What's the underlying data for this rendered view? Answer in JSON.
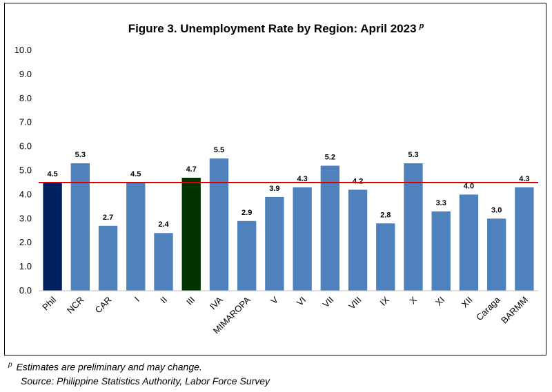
{
  "chart_data": {
    "type": "bar",
    "title": "Figure 3. Unemployment Rate by Region: April 2023",
    "title_superscript": "p",
    "categories": [
      "Phil",
      "NCR",
      "CAR",
      "I",
      "II",
      "III",
      "IVA",
      "MIMAROPA",
      "V",
      "VI",
      "VII",
      "VIII",
      "IX",
      "X",
      "XI",
      "XII",
      "Caraga",
      "BARMM"
    ],
    "values": [
      4.5,
      5.3,
      2.7,
      4.5,
      2.4,
      4.7,
      5.5,
      2.9,
      3.9,
      4.3,
      5.2,
      4.2,
      2.8,
      5.3,
      3.3,
      4.0,
      3.0,
      4.3
    ],
    "value_labels": [
      "4.5",
      "5.3",
      "2.7",
      "4.5",
      "2.4",
      "4.7",
      "5.5",
      "2.9",
      "3.9",
      "4.3",
      "5.2",
      "4.2",
      "2.8",
      "5.3",
      "3.3",
      "4.0",
      "3.0",
      "4.3"
    ],
    "bar_colors": [
      "#002060",
      "#4F81BD",
      "#4F81BD",
      "#4F81BD",
      "#4F81BD",
      "#003300",
      "#4F81BD",
      "#4F81BD",
      "#4F81BD",
      "#4F81BD",
      "#4F81BD",
      "#4F81BD",
      "#4F81BD",
      "#4F81BD",
      "#4F81BD",
      "#4F81BD",
      "#4F81BD",
      "#4F81BD"
    ],
    "ylim": [
      0,
      10
    ],
    "yticks": [
      "0.0",
      "1.0",
      "2.0",
      "3.0",
      "4.0",
      "5.0",
      "6.0",
      "7.0",
      "8.0",
      "9.0",
      "10.0"
    ],
    "reference_line": {
      "value": 4.5,
      "color": "#E00000"
    },
    "xlabel": "",
    "ylabel": "",
    "grid": false
  },
  "footnote": {
    "marker": "p",
    "text": "Estimates are preliminary and may change.",
    "source": "Source: Philippine Statistics Authority, Labor Force Survey"
  }
}
